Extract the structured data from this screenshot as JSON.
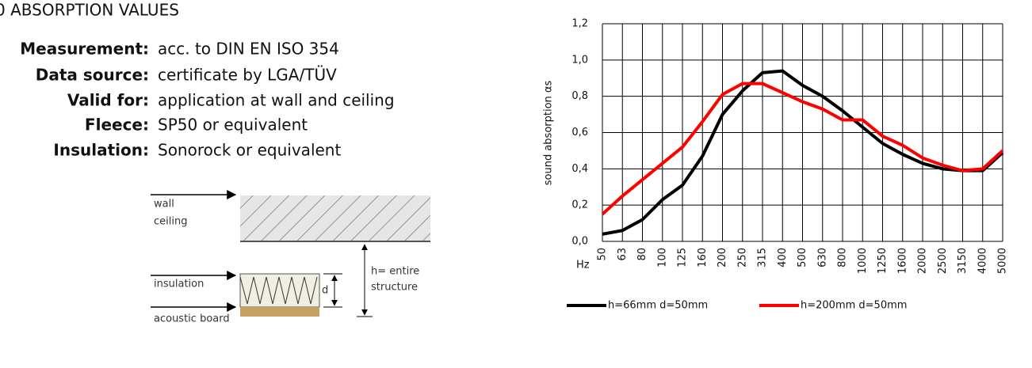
{
  "header": {
    "title": "0 ABSORPTION VALUES"
  },
  "specs": [
    {
      "label": "Measurement:",
      "value": "acc. to DIN EN ISO 354"
    },
    {
      "label": "Data source:",
      "value": "certificate by LGA/TÜV"
    },
    {
      "label": "Valid for:",
      "value": "application at wall and ceiling"
    },
    {
      "label": "Fleece:",
      "value": "SP50 or equivalent"
    },
    {
      "label": "Insulation:",
      "value": "Sonorock or equivalent"
    }
  ],
  "diagram": {
    "wall": "wall",
    "ceiling": "ceiling",
    "insulation": "insulation",
    "board": "acoustic board",
    "h_label": "h= entire",
    "h_label2": "structure",
    "d_label": "d"
  },
  "chart_data": {
    "type": "line",
    "y_label": "sound absorption αs",
    "x_unit": "Hz",
    "categories": [
      "50",
      "63",
      "80",
      "100",
      "125",
      "160",
      "200",
      "250",
      "315",
      "400",
      "500",
      "630",
      "800",
      "1000",
      "1250",
      "1600",
      "2000",
      "2500",
      "3150",
      "4000",
      "5000"
    ],
    "series": [
      {
        "name": "h=66mm d=50mm",
        "color": "#000000",
        "values": [
          0.04,
          0.06,
          0.12,
          0.23,
          0.31,
          0.47,
          0.7,
          0.83,
          0.93,
          0.94,
          0.86,
          0.8,
          0.72,
          0.63,
          0.54,
          0.48,
          0.43,
          0.4,
          0.39,
          0.39,
          0.49
        ]
      },
      {
        "name": "h=200mm d=50mm",
        "color": "#ff0000",
        "values": [
          0.15,
          0.25,
          0.34,
          0.43,
          0.52,
          0.66,
          0.81,
          0.87,
          0.87,
          0.82,
          0.77,
          0.73,
          0.67,
          0.67,
          0.58,
          0.53,
          0.46,
          0.42,
          0.39,
          0.4,
          0.5
        ]
      }
    ],
    "ylim": [
      0,
      1.2
    ],
    "yticks": [
      {
        "value": 0,
        "label": "0,0"
      },
      {
        "value": 0.2,
        "label": "0,2"
      },
      {
        "value": 0.4,
        "label": "0,4"
      },
      {
        "value": 0.6,
        "label": "0,6"
      },
      {
        "value": 0.8,
        "label": "0,8"
      },
      {
        "value": 1,
        "label": "1,0"
      },
      {
        "value": 1.2,
        "label": "1,2"
      }
    ],
    "grid": true
  }
}
